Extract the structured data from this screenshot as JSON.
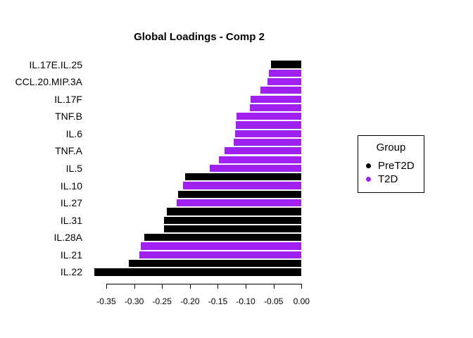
{
  "title": "Global Loadings - Comp 2",
  "legend": {
    "title": "Group",
    "items": [
      {
        "label": "PreT2D",
        "color": "#000000"
      },
      {
        "label": "T2D",
        "color": "#A020F0"
      }
    ],
    "position": "right"
  },
  "chart_data": {
    "type": "bar",
    "orientation": "horizontal",
    "title": "Global Loadings - Comp 2",
    "xlabel": "",
    "ylabel": "",
    "xlim": [
      -0.38,
      0.0
    ],
    "x_ticks": [
      -0.35,
      -0.3,
      -0.25,
      -0.2,
      -0.15,
      -0.1,
      -0.05,
      0.0
    ],
    "x_tick_labels": [
      "-0.35",
      "-0.30",
      "-0.25",
      "-0.20",
      "-0.15",
      "-0.10",
      "-0.05",
      "0.00"
    ],
    "grid": false,
    "legend_position": "right",
    "groups": {
      "PreT2D": "#000000",
      "T2D": "#A020F0"
    },
    "bars_note": "Bars listed top to bottom; alternate bars are unlabeled in the rendered axis (labels dropped to avoid overlap).",
    "bars": [
      {
        "label": "IL.17E.IL.25",
        "value": -0.055,
        "group": "PreT2D"
      },
      {
        "label": "",
        "value": -0.059,
        "group": "T2D"
      },
      {
        "label": "CCL.20.MIP.3A",
        "value": -0.061,
        "group": "T2D"
      },
      {
        "label": "",
        "value": -0.073,
        "group": "T2D"
      },
      {
        "label": "IL.17F",
        "value": -0.091,
        "group": "T2D"
      },
      {
        "label": "",
        "value": -0.093,
        "group": "T2D"
      },
      {
        "label": "TNF.B",
        "value": -0.117,
        "group": "T2D"
      },
      {
        "label": "",
        "value": -0.118,
        "group": "T2D"
      },
      {
        "label": "IL.6",
        "value": -0.119,
        "group": "T2D"
      },
      {
        "label": "",
        "value": -0.121,
        "group": "T2D"
      },
      {
        "label": "TNF.A",
        "value": -0.138,
        "group": "T2D"
      },
      {
        "label": "",
        "value": -0.148,
        "group": "T2D"
      },
      {
        "label": "IL.5",
        "value": -0.165,
        "group": "T2D"
      },
      {
        "label": "",
        "value": -0.209,
        "group": "PreT2D"
      },
      {
        "label": "IL.10",
        "value": -0.213,
        "group": "T2D"
      },
      {
        "label": "",
        "value": -0.221,
        "group": "PreT2D"
      },
      {
        "label": "IL.27",
        "value": -0.224,
        "group": "T2D"
      },
      {
        "label": "",
        "value": -0.241,
        "group": "PreT2D"
      },
      {
        "label": "IL.31",
        "value": -0.246,
        "group": "PreT2D"
      },
      {
        "label": "",
        "value": -0.246,
        "group": "PreT2D"
      },
      {
        "label": "IL.28A",
        "value": -0.282,
        "group": "PreT2D"
      },
      {
        "label": "",
        "value": -0.288,
        "group": "T2D"
      },
      {
        "label": "IL.21",
        "value": -0.291,
        "group": "T2D"
      },
      {
        "label": "",
        "value": -0.31,
        "group": "PreT2D"
      },
      {
        "label": "IL.22",
        "value": -0.371,
        "group": "PreT2D"
      }
    ]
  }
}
